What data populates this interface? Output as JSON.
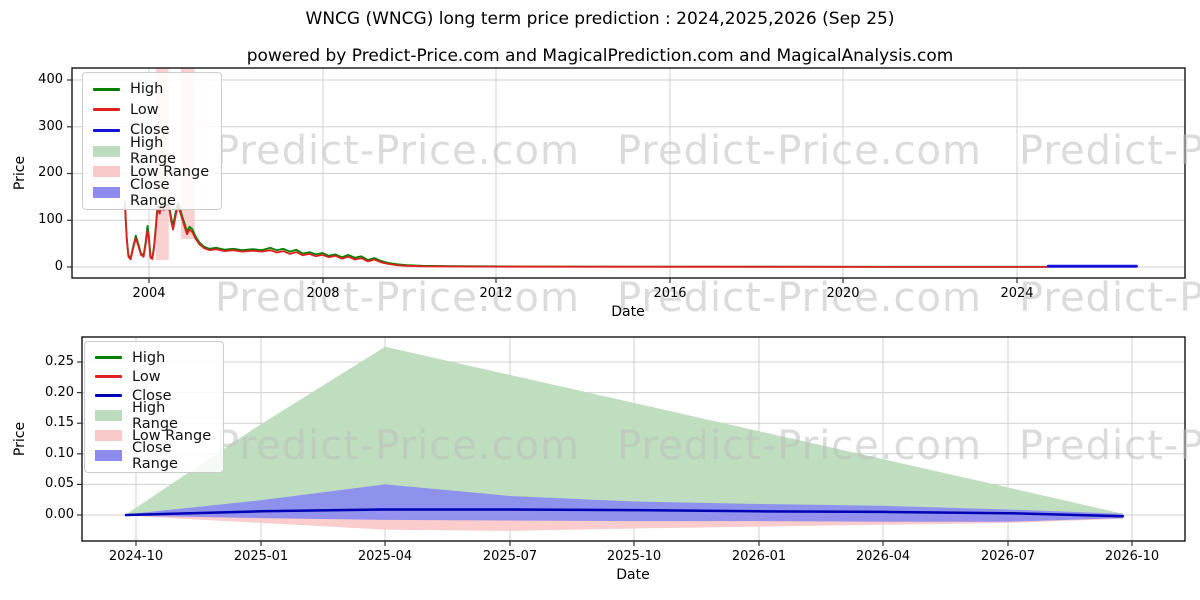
{
  "title": "WNCG (WNCG) long term price prediction : 2024,2025,2026 (Sep 25)",
  "subtitle": "powered by Predict-Price.com and MagicalPrediction.com and MagicalAnalysis.com",
  "watermark": {
    "text": "Predict-Price.com"
  },
  "colors": {
    "high_line": "#007f00",
    "low_line": "#e01f1f",
    "close_line_top": "#1313d8",
    "close_line_bottom": "#0000b4",
    "high_range_fill": "#bcdcbc",
    "low_range_fill": "#fac9c9",
    "close_range_fill": "#8b8bf0",
    "spike_fill": "#f7c5c5",
    "grid": "#d0d0d0",
    "watermark": "#dddddd"
  },
  "legend": {
    "items": [
      "High",
      "Low",
      "Close",
      "High Range",
      "Low Range",
      "Close Range"
    ]
  },
  "axis": {
    "price_label": "Price",
    "date_label": "Date"
  },
  "chart_data": [
    {
      "type": "line",
      "name": "historical-price-with-prediction",
      "xlabel": "Date",
      "ylabel": "Price",
      "xlim": [
        2002.23,
        2027.88
      ],
      "ylim": [
        -23.5,
        425.7
      ],
      "xtick_labels": [
        "2004",
        "2008",
        "2012",
        "2016",
        "2020",
        "2024"
      ],
      "ytick_labels": [
        "0",
        "100",
        "200",
        "300",
        "400"
      ],
      "grid": true,
      "legend_position": "upper left",
      "series": [
        {
          "name": "High",
          "color": "#007f00",
          "width": 1.8,
          "x": [
            2003.45,
            2003.49,
            2003.53,
            2003.58,
            2003.64,
            2003.7,
            2003.76,
            2003.82,
            2003.88,
            2003.93,
            2003.97,
            2004.0,
            2004.04,
            2004.08,
            2004.12,
            2004.16,
            2004.19,
            2004.22,
            2004.25,
            2004.28,
            2004.31,
            2004.34,
            2004.37,
            2004.4,
            2004.44,
            2004.48,
            2004.52,
            2004.56,
            2004.6,
            2004.64,
            2004.68,
            2004.73,
            2004.78,
            2004.83,
            2004.88,
            2004.94,
            2005.0,
            2005.08,
            2005.17,
            2005.28,
            2005.4,
            2005.55,
            2005.75,
            2005.95,
            2006.15,
            2006.4,
            2006.6,
            2006.8,
            2006.95,
            2007.1,
            2007.25,
            2007.4,
            2007.55,
            2007.7,
            2007.85,
            2008.0,
            2008.15,
            2008.3,
            2008.45,
            2008.6,
            2008.75,
            2008.9,
            2009.05,
            2009.2,
            2009.35,
            2009.5,
            2009.7,
            2009.95,
            2010.3,
            2011.0,
            2012.5,
            2015.0,
            2018.0,
            2021.0,
            2024.71
          ],
          "y": [
            140,
            65,
            25,
            19,
            44,
            67,
            49,
            29,
            25,
            56,
            88,
            68,
            23,
            19,
            44,
            84,
            118,
            132,
            119,
            134,
            137,
            128,
            139,
            132,
            134,
            126,
            103,
            89,
            108,
            126,
            136,
            121,
            106,
            92,
            76,
            86,
            81,
            65,
            52,
            43,
            39,
            41,
            37,
            39,
            36,
            38,
            36,
            41,
            36,
            39,
            33,
            37,
            29,
            32,
            27,
            30,
            24,
            27,
            21,
            26,
            20,
            23,
            15,
            19,
            13,
            9,
            6,
            4,
            2.5,
            1.8,
            1.2,
            0.8,
            0.6,
            0.4,
            0.4
          ]
        },
        {
          "name": "Low",
          "color": "#e01f1f",
          "width": 1.8,
          "x": [
            2003.45,
            2003.49,
            2003.53,
            2003.58,
            2003.64,
            2003.7,
            2003.76,
            2003.82,
            2003.88,
            2003.93,
            2003.97,
            2004.0,
            2004.04,
            2004.08,
            2004.12,
            2004.16,
            2004.19,
            2004.22,
            2004.25,
            2004.28,
            2004.31,
            2004.34,
            2004.37,
            2004.4,
            2004.44,
            2004.48,
            2004.52,
            2004.56,
            2004.6,
            2004.64,
            2004.68,
            2004.73,
            2004.78,
            2004.83,
            2004.88,
            2004.94,
            2005.0,
            2005.08,
            2005.17,
            2005.28,
            2005.4,
            2005.55,
            2005.75,
            2005.95,
            2006.15,
            2006.4,
            2006.6,
            2006.8,
            2006.95,
            2007.1,
            2007.25,
            2007.4,
            2007.55,
            2007.7,
            2007.85,
            2008.0,
            2008.15,
            2008.3,
            2008.45,
            2008.6,
            2008.75,
            2008.9,
            2009.05,
            2009.2,
            2009.35,
            2009.5,
            2009.7,
            2009.95,
            2010.3,
            2011.0,
            2012.5,
            2015.0,
            2018.0,
            2021.0,
            2024.71
          ],
          "y": [
            132,
            60,
            22,
            16,
            40,
            62,
            45,
            26,
            22,
            50,
            78,
            60,
            20,
            17,
            40,
            78,
            112,
            126,
            114,
            128,
            131,
            122,
            133,
            126,
            128,
            120,
            95,
            80,
            100,
            120,
            130,
            115,
            100,
            85,
            70,
            80,
            75,
            60,
            48,
            40,
            36,
            38,
            34,
            36,
            33,
            35,
            33,
            36,
            31,
            34,
            28,
            32,
            25,
            28,
            23,
            26,
            21,
            24,
            18,
            22,
            16,
            19,
            12,
            16,
            10,
            7,
            4,
            2.5,
            1.5,
            1,
            0.7,
            0.5,
            0.4,
            0.3,
            0.3
          ]
        },
        {
          "name": "Close (prediction)",
          "color": "#1313d8",
          "width": 3,
          "x": [
            2024.73,
            2026.76
          ],
          "y": [
            1.5,
            1.5
          ]
        }
      ],
      "spikes": [
        {
          "x0": 2004.16,
          "x1": 2004.46,
          "v0": 15,
          "v1": 424
        },
        {
          "x0": 2004.74,
          "x1": 2005.06,
          "v0": 60,
          "v1": 424
        }
      ]
    },
    {
      "type": "area",
      "name": "prediction-2024-2026",
      "xlabel": "Date",
      "ylabel": "Price",
      "xlim": [
        2024.6417,
        2026.8546
      ],
      "ylim": [
        -0.0425,
        0.29085
      ],
      "xtick_labels": [
        "2024-10",
        "2025-01",
        "2025-04",
        "2025-07",
        "2025-10",
        "2026-01",
        "2026-04",
        "2026-07",
        "2026-10"
      ],
      "ytick_labels": [
        "0.00",
        "0.05",
        "0.10",
        "0.15",
        "0.20",
        "0.25"
      ],
      "grid": true,
      "legend_position": "upper left",
      "series": [
        {
          "name": "High Range",
          "color": "#bcdcbc",
          "x": [
            2024.73,
            2025.0,
            2025.25,
            2025.5,
            2025.75,
            2026.0,
            2026.25,
            2026.5,
            2026.73
          ],
          "y": [
            0.001,
            0.148,
            0.275,
            0.229,
            0.183,
            0.137,
            0.091,
            0.045,
            0.002
          ],
          "y2": [
            0,
            0.002,
            0.004,
            0.004,
            0.003,
            0.003,
            0.002,
            0.001,
            0
          ]
        },
        {
          "name": "Low Range",
          "color": "#fac9c9",
          "x": [
            2024.73,
            2025.0,
            2025.25,
            2025.5,
            2025.75,
            2026.0,
            2026.25,
            2026.5,
            2026.73
          ],
          "y": [
            0,
            0.001,
            0.002,
            0.002,
            0.002,
            0.001,
            0.001,
            0,
            0
          ],
          "y2": [
            -0.001,
            -0.013,
            -0.024,
            -0.026,
            -0.022,
            -0.019,
            -0.016,
            -0.013,
            -0.006
          ]
        },
        {
          "name": "Close Range",
          "color": "#8b8bf0",
          "x": [
            2024.73,
            2025.0,
            2025.25,
            2025.5,
            2025.75,
            2026.0,
            2026.25,
            2026.5,
            2026.73
          ],
          "y": [
            0.001,
            0.024,
            0.05,
            0.031,
            0.022,
            0.018,
            0.015,
            0.009,
            0.002
          ],
          "y2": [
            -0.001,
            -0.005,
            -0.008,
            -0.009,
            -0.01,
            -0.01,
            -0.011,
            -0.011,
            -0.005
          ]
        },
        {
          "name": "Close",
          "color": "#0000b4",
          "width": 2.5,
          "x": [
            2024.73,
            2025.0,
            2025.25,
            2025.5,
            2025.75,
            2026.0,
            2026.25,
            2026.5,
            2026.73
          ],
          "y": [
            0,
            0.006,
            0.009,
            0.009,
            0.008,
            0.006,
            0.005,
            0.003,
            -0.002
          ]
        }
      ],
      "spikes": []
    }
  ]
}
